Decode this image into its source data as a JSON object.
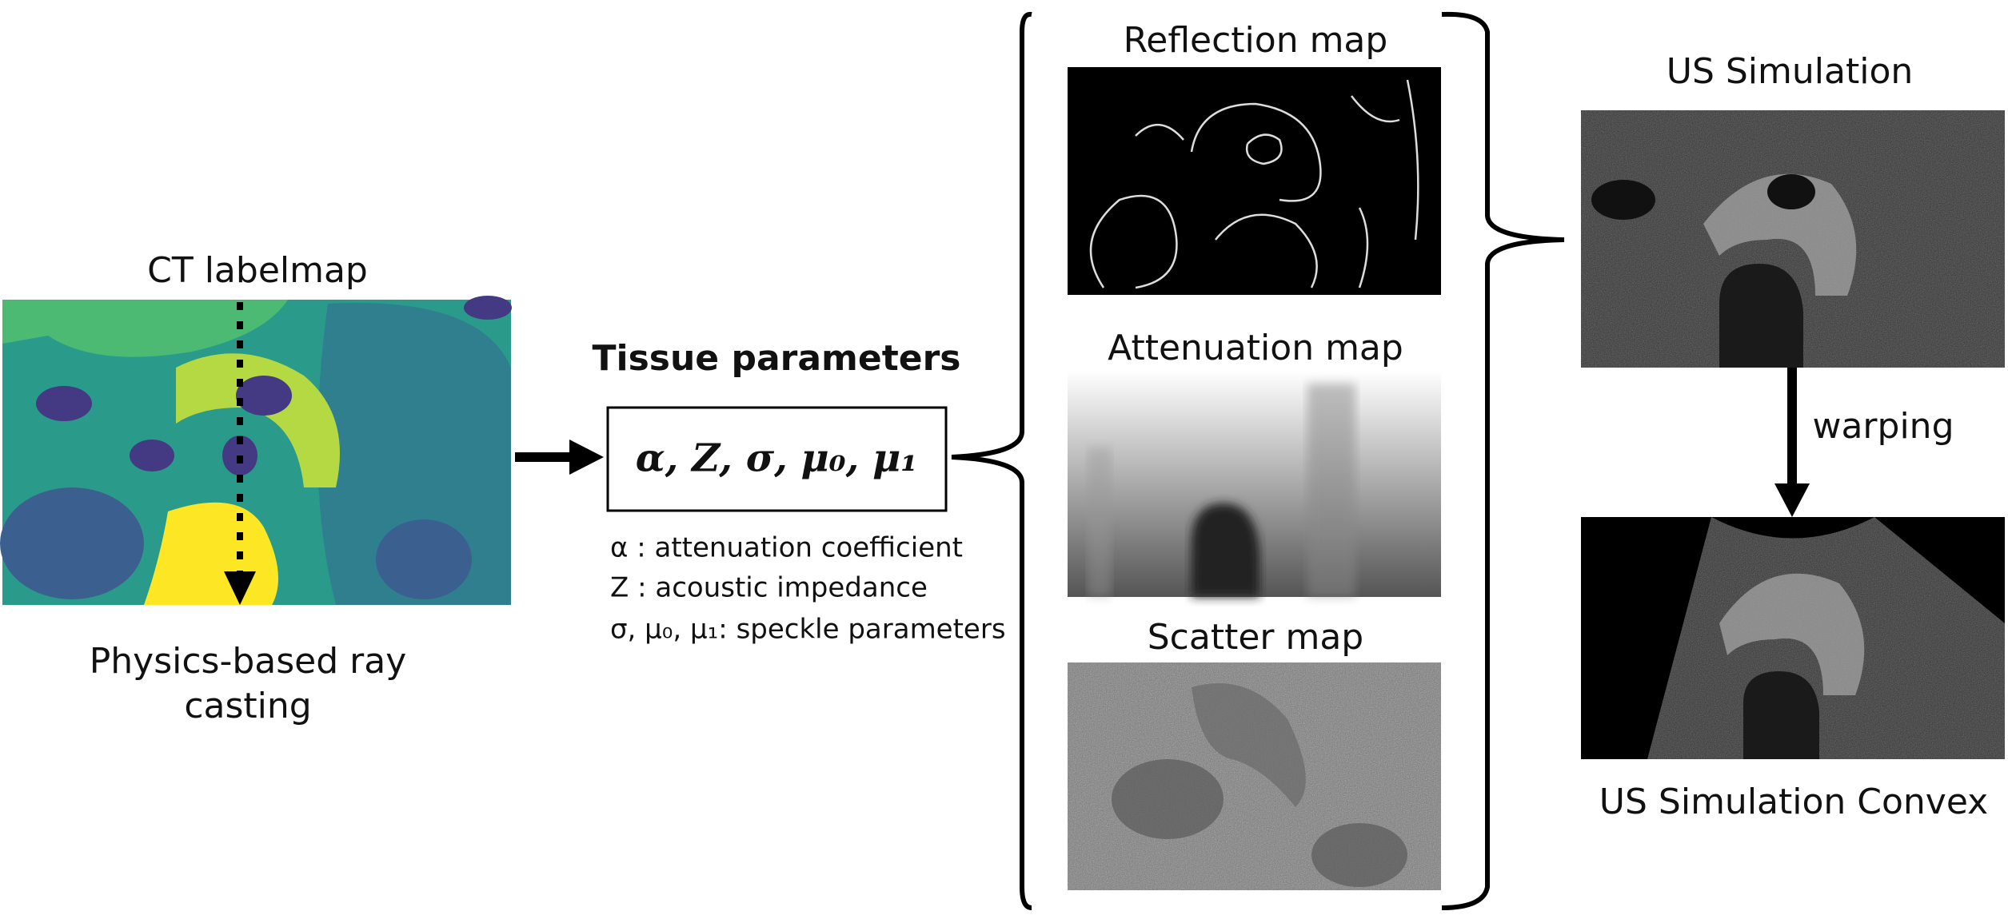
{
  "ct_panel": {
    "title": "CT labelmap",
    "caption": "Physics-based ray casting"
  },
  "tissue": {
    "title": "Tissue parameters",
    "formula": "α, Z, σ, μ₀, μ₁",
    "legend": [
      "α : attenuation coefficient",
      "Z : acoustic impedance",
      "σ, μ₀, μ₁: speckle parameters"
    ]
  },
  "maps": [
    "Reflection map",
    "Attenuation map",
    "Scatter map"
  ],
  "simulation": {
    "title": "US Simulation",
    "arrow_label": "warping",
    "convex_title": "US Simulation Convex"
  }
}
